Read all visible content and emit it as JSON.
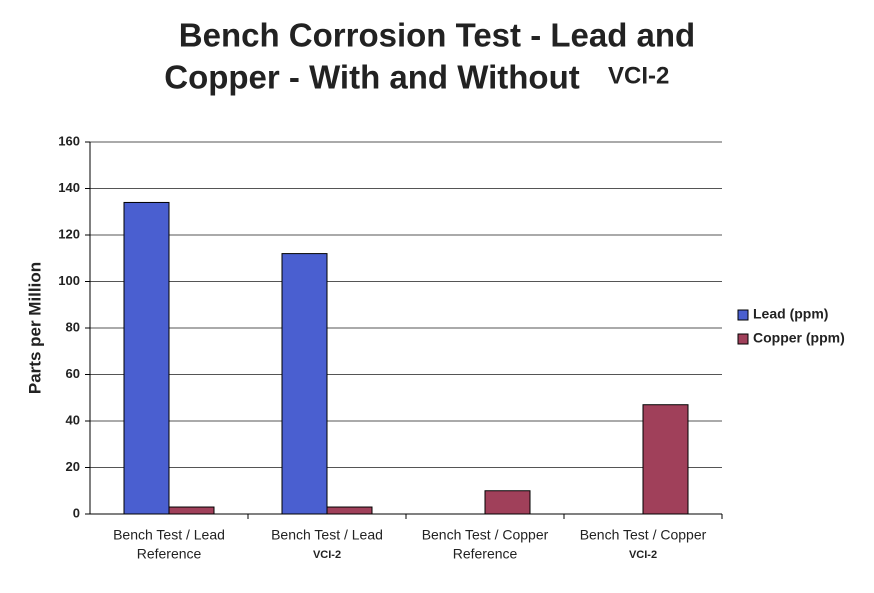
{
  "chart_data": {
    "type": "bar",
    "title": [
      "Bench Corrosion Test - Lead and",
      "Copper - With and Without"
    ],
    "title_note": "VCI-2",
    "y_label": "Parts per Million",
    "categories": [
      [
        "Bench Test / Lead",
        "Reference"
      ],
      [
        "Bench Test / Lead",
        "VCI-2"
      ],
      [
        "Bench Test / Copper",
        "Reference"
      ],
      [
        "Bench Test / Copper",
        "VCI-2"
      ]
    ],
    "series": [
      {
        "name": "Lead (ppm)",
        "color": "#4a5fd0",
        "values": [
          134,
          112,
          null,
          null
        ]
      },
      {
        "name": "Copper (ppm)",
        "color": "#a0405a",
        "values": [
          3,
          3,
          10,
          47
        ]
      }
    ],
    "ylim": [
      0,
      160
    ],
    "yticks": [
      0,
      20,
      40,
      60,
      80,
      100,
      120,
      140,
      160
    ],
    "grid": true,
    "legend": "right"
  }
}
